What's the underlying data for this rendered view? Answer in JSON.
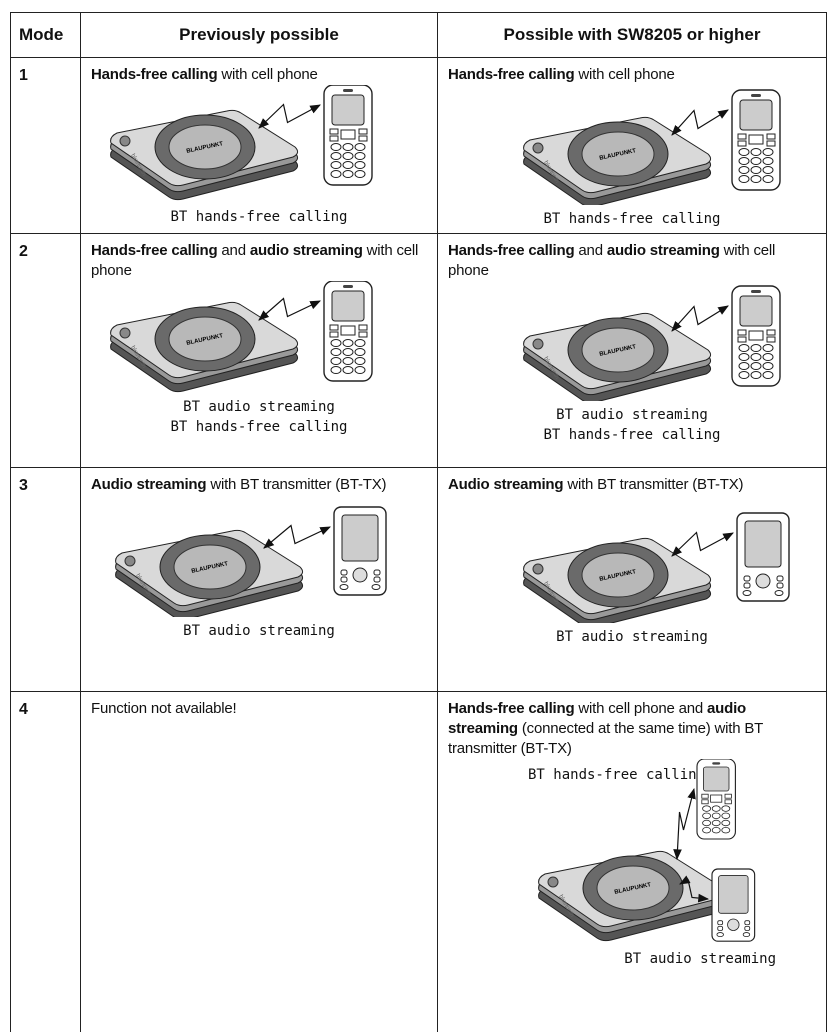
{
  "header": [
    "Mode",
    "Previously possible",
    "Possible with SW8205 or higher"
  ],
  "device_brand": "BLAUPUNKT",
  "device_side_label": "bluetooth",
  "rows": [
    {
      "mode": "1",
      "previous": {
        "text": [
          {
            "text": "Hands-free calling",
            "bold": true
          },
          {
            "text": " with cell phone",
            "bold": false
          }
        ],
        "captions": [
          "BT hands-free calling"
        ]
      },
      "new": {
        "text": [
          {
            "text": "Hands-free calling",
            "bold": true
          },
          {
            "text": " with cell phone",
            "bold": false
          }
        ],
        "captions": [
          "BT hands-free calling"
        ]
      }
    },
    {
      "mode": "2",
      "previous": {
        "text": [
          {
            "text": "Hands-free calling",
            "bold": true
          },
          {
            "text": " and ",
            "bold": false
          },
          {
            "text": "audio streaming",
            "bold": true
          },
          {
            "text": " with cell phone",
            "bold": false
          }
        ],
        "captions": [
          "BT audio streaming",
          "BT hands-free calling"
        ]
      },
      "new": {
        "text": [
          {
            "text": "Hands-free calling",
            "bold": true
          },
          {
            "text": " and ",
            "bold": false
          },
          {
            "text": "audio streaming",
            "bold": true
          },
          {
            "text": " with cell phone",
            "bold": false
          }
        ],
        "captions": [
          "BT audio streaming",
          "BT hands-free calling"
        ]
      }
    },
    {
      "mode": "3",
      "previous": {
        "text": [
          {
            "text": "Audio streaming",
            "bold": true
          },
          {
            "text": " with BT transmitter (BT-TX)",
            "bold": false
          }
        ],
        "captions": [
          "BT audio streaming"
        ]
      },
      "new": {
        "text": [
          {
            "text": "Audio streaming",
            "bold": true
          },
          {
            "text": " with BT transmitter (BT-TX)",
            "bold": false
          }
        ],
        "captions": [
          "BT audio streaming"
        ]
      }
    },
    {
      "mode": "4",
      "previous": {
        "text": [
          {
            "text": "Function not available!",
            "bold": false
          }
        ],
        "captions": []
      },
      "new": {
        "text": [
          {
            "text": "Hands-free calling",
            "bold": true
          },
          {
            "text": " with cell phone and ",
            "bold": false
          },
          {
            "text": "audio streaming",
            "bold": true
          },
          {
            "text": " (connected at the same time) with BT transmitter (BT-TX)",
            "bold": false
          }
        ],
        "captions": [
          "BT hands-free calling",
          "BT audio streaming"
        ]
      }
    }
  ]
}
